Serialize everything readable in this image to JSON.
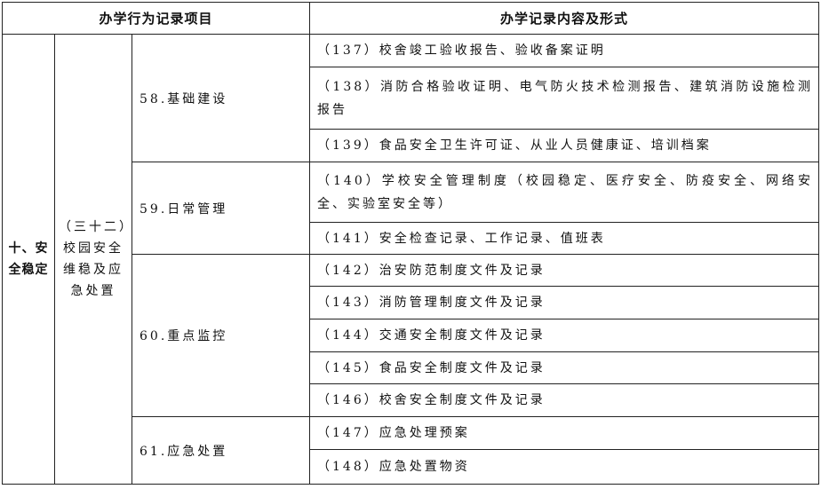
{
  "header": {
    "left": "办学行为记录项目",
    "right": "办学记录内容及形式"
  },
  "category": "十、安全稳定",
  "subcategory": "（三十二）校园安全维稳及应急处置",
  "groups": [
    {
      "title": "58.基础建设",
      "items": [
        "（137）校舍竣工验收报告、验收备案证明",
        "（138）消防合格验收证明、电气防火技术检测报告、建筑消防设施检测报告",
        "（139）食品安全卫生许可证、从业人员健康证、培训档案"
      ]
    },
    {
      "title": "59.日常管理",
      "items": [
        "（140）学校安全管理制度（校园稳定、医疗安全、防疫安全、网络安全、实验室安全等）",
        "（141）安全检查记录、工作记录、值班表"
      ]
    },
    {
      "title": "60.重点监控",
      "items": [
        "（142）治安防范制度文件及记录",
        "（143）消防管理制度文件及记录",
        "（144）交通安全制度文件及记录",
        "（145）食品安全制度文件及记录",
        "（146）校舍安全制度文件及记录"
      ]
    },
    {
      "title": "61.应急处置",
      "items": [
        "（147）应急处理预案",
        "（148）应急处置物资"
      ]
    }
  ]
}
